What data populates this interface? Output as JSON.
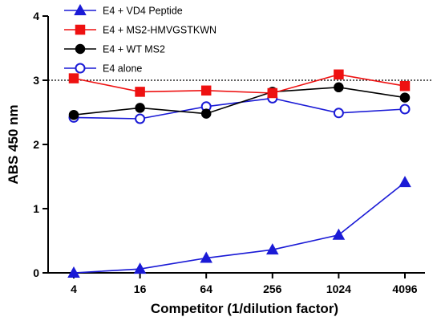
{
  "chart_data": {
    "type": "line",
    "xlabel": "Competitor (1/dilution factor)",
    "ylabel": "ABS 450 nm",
    "x": [
      "4",
      "16",
      "64",
      "256",
      "1024",
      "4096"
    ],
    "x_scale": "log2",
    "ylim": [
      0,
      4
    ],
    "yticks": [
      "0",
      "1",
      "2",
      "3",
      "4"
    ],
    "reference_line": {
      "y": 3,
      "style": "dotted"
    },
    "legend_position": "top-left",
    "grid": false,
    "series": [
      {
        "name": "E4 + VD4 Peptide",
        "color": "#1a1ad6",
        "marker": "triangle",
        "filled": true,
        "values": [
          0.0,
          0.06,
          0.23,
          0.36,
          0.59,
          1.41
        ]
      },
      {
        "name": "E4 + MS2-HMVGSTKWN",
        "color": "#ee1111",
        "marker": "square",
        "filled": true,
        "values": [
          3.03,
          2.82,
          2.84,
          2.8,
          3.09,
          2.91
        ]
      },
      {
        "name": "E4 + WT MS2",
        "color": "#000000",
        "marker": "circle",
        "filled": true,
        "values": [
          2.46,
          2.57,
          2.48,
          2.82,
          2.89,
          2.73
        ]
      },
      {
        "name": "E4 alone",
        "color": "#1a1ad6",
        "marker": "circle",
        "filled": false,
        "values": [
          2.42,
          2.4,
          2.59,
          2.72,
          2.49,
          2.55
        ]
      }
    ]
  }
}
